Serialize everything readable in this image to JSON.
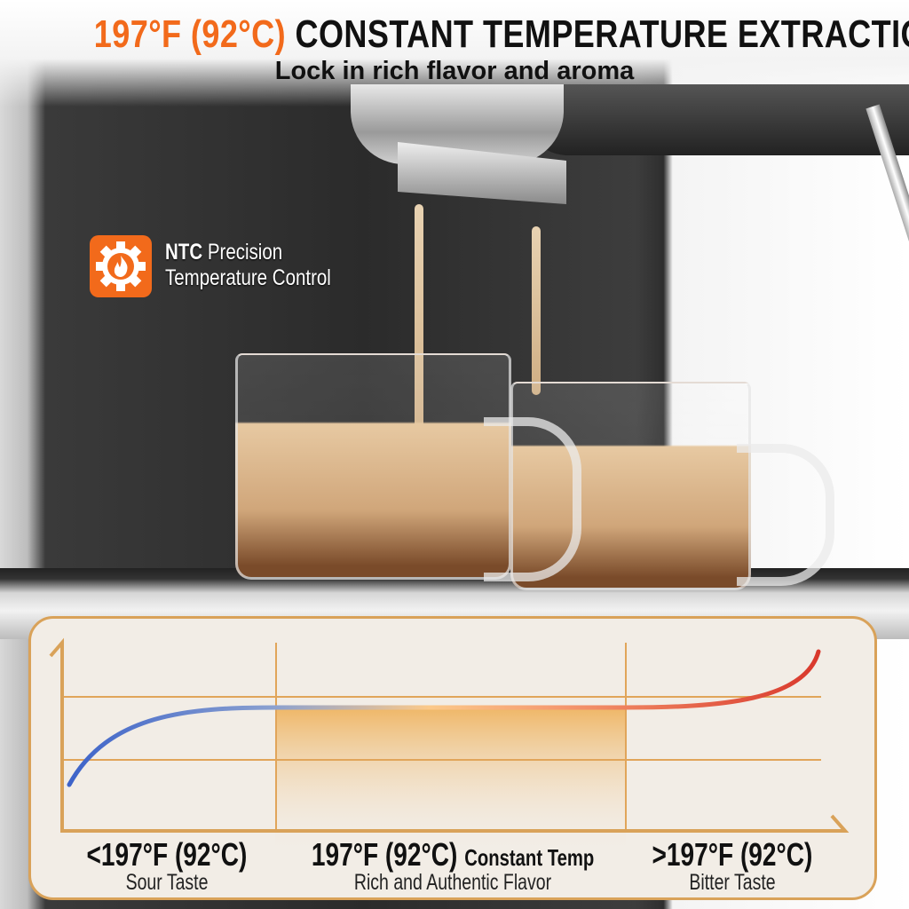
{
  "header": {
    "title_accent": "197°F (92°C)",
    "title_main": "CONSTANT TEMPERATURE EXTRACTION",
    "subtitle": "Lock in rich flavor and aroma"
  },
  "feature": {
    "icon": "gear-flame-icon",
    "title_bold": "NTC",
    "title_rest": "Precision",
    "line2": "Temperature Control"
  },
  "chart_data": {
    "type": "line",
    "title": "",
    "xlabel": "",
    "ylabel": "",
    "grid": true,
    "zones": [
      {
        "temp": "<197°F (92°C)",
        "suffix": "",
        "taste": "Sour Taste",
        "color": "#3d63c9"
      },
      {
        "temp": "197°F (92°C)",
        "suffix": "Constant Temp",
        "taste": "Rich and Authentic Flavor",
        "color": "#f2b25c"
      },
      {
        "temp": ">197°F (92°C)",
        "suffix": "",
        "taste": "Bitter Taste",
        "color": "#d9382c"
      }
    ]
  },
  "colors": {
    "accent": "#f26a1b",
    "panel_border": "#d9a259",
    "panel_bg": "#f2ede6"
  }
}
